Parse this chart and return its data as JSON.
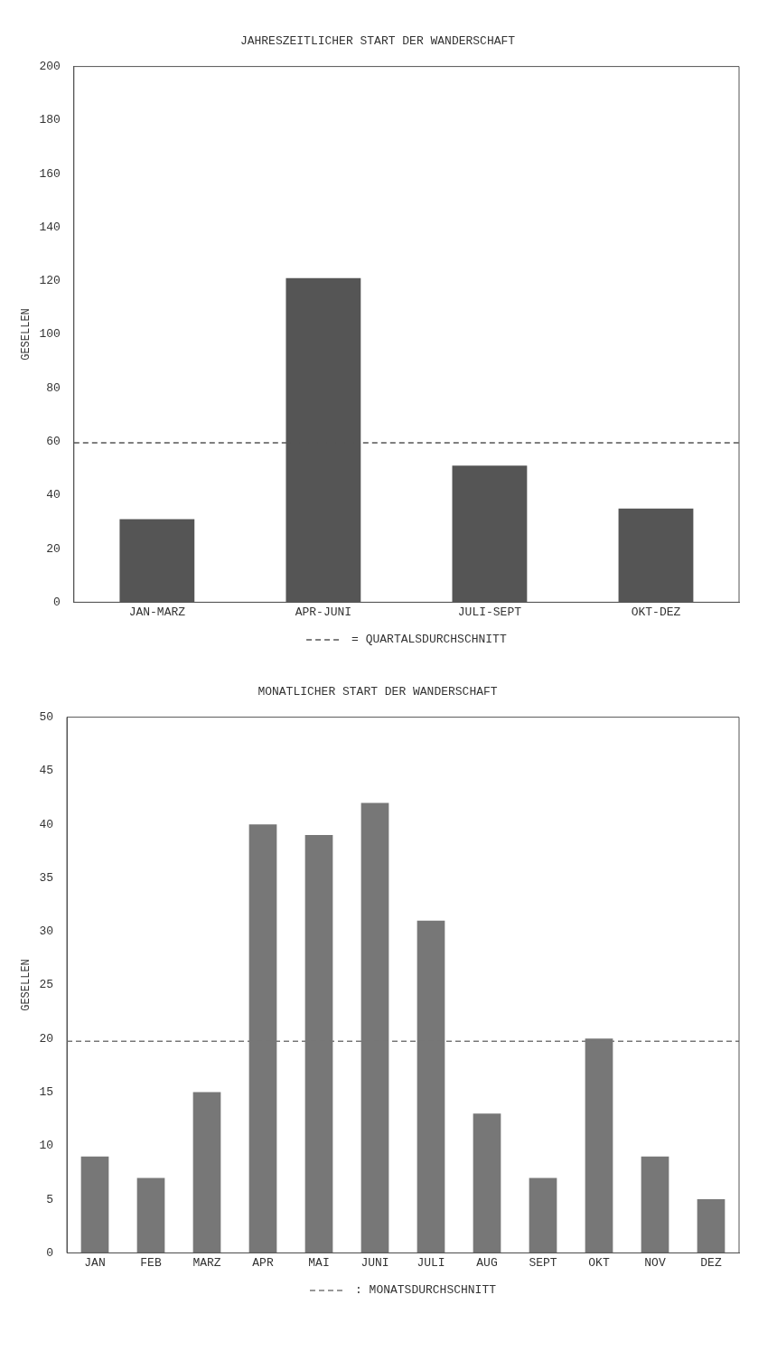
{
  "chart_data": [
    {
      "type": "bar",
      "title": "JAHRESZEITLICHER START DER WANDERSCHAFT",
      "ylabel": "GESELLEN",
      "categories": [
        "JAN-MARZ",
        "APR-JUNI",
        "JULI-SEPT",
        "OKT-DEZ"
      ],
      "values": [
        31,
        121,
        51,
        35
      ],
      "color": "#555555",
      "ylim": [
        0,
        200
      ],
      "yticks": [
        0,
        20,
        40,
        60,
        80,
        100,
        120,
        140,
        160,
        180,
        200
      ],
      "grid": false,
      "ref_lines": [
        {
          "axis": "y",
          "value": 59.5,
          "label": "= QUARTALSDURCHSCHNITT",
          "line_style": "dashed",
          "color": "#555555"
        }
      ]
    },
    {
      "type": "bar",
      "title": "MONATLICHER START DER WANDERSCHAFT",
      "ylabel": "GESELLEN",
      "categories": [
        "JAN",
        "FEB",
        "MARZ",
        "APR",
        "MAI",
        "JUNI",
        "JULI",
        "AUG",
        "SEPT",
        "OKT",
        "NOV",
        "DEZ"
      ],
      "values": [
        9,
        7,
        15,
        40,
        39,
        42,
        31,
        13,
        7,
        20,
        9,
        5
      ],
      "color": "#777777",
      "ylim": [
        0,
        50
      ],
      "yticks": [
        0,
        5,
        10,
        15,
        20,
        25,
        30,
        35,
        40,
        45,
        50
      ],
      "grid": false,
      "ref_lines": [
        {
          "axis": "y",
          "value": 19.75,
          "label": ": MONATSDURCHSCHNITT",
          "line_style": "dashed",
          "color": "#777777"
        }
      ]
    }
  ]
}
